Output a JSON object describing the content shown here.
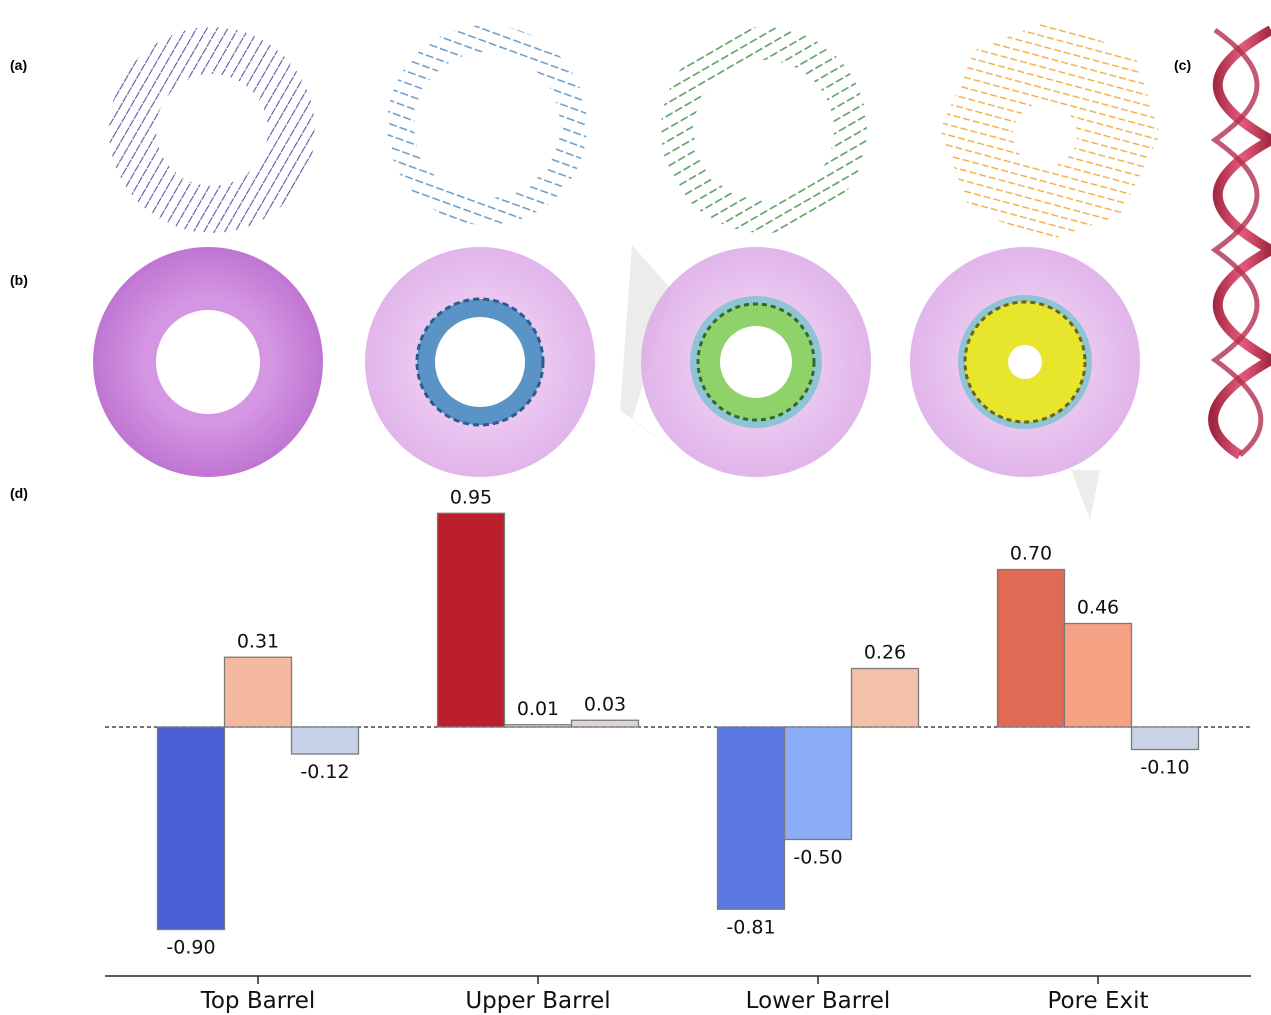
{
  "panels": {
    "a": "(a)",
    "b": "(b)",
    "c": "(c)",
    "d": "(d)"
  },
  "colors": {
    "panel_a_arrows": "#5b3fa3",
    "panel_a2_arrows": "#3f86c4",
    "panel_a3_arrows": "#3a9a44",
    "panel_a4_arrows": "#f5a623",
    "surface_magenta": "#c873d8",
    "helix": "#d94a6e"
  },
  "chart_data": {
    "type": "bar",
    "categories": [
      "Top Barrel",
      "Upper Barrel",
      "Lower Barrel",
      "Pore Exit"
    ],
    "series": [
      {
        "values": [
          -0.9,
          0.95,
          -0.81,
          0.7
        ],
        "colors": [
          "#4a5fd4",
          "#bb1f2c",
          "#5b78e3",
          "#e06b55"
        ]
      },
      {
        "values": [
          0.31,
          0.01,
          -0.5,
          0.46
        ],
        "colors": [
          "#f4b9a0",
          "#dedcdc",
          "#8bacf7",
          "#f4a283"
        ]
      },
      {
        "values": [
          -0.12,
          0.03,
          0.26,
          -0.1
        ],
        "colors": [
          "#c6d2e8",
          "#dcd4d1",
          "#f3c2a9",
          "#c9d3e6"
        ]
      }
    ],
    "value_labels": [
      [
        "-0.90",
        "0.95",
        "-0.81",
        "0.70"
      ],
      [
        "0.31",
        "0.01",
        "-0.50",
        "0.46"
      ],
      [
        "-0.12",
        "0.03",
        "0.26",
        "-0.10"
      ]
    ],
    "baseline": 0,
    "ylim": [
      -1.1,
      1.05
    ],
    "grid": false,
    "zero_line": "dashed",
    "xlabel": "",
    "ylabel": "",
    "title": ""
  }
}
